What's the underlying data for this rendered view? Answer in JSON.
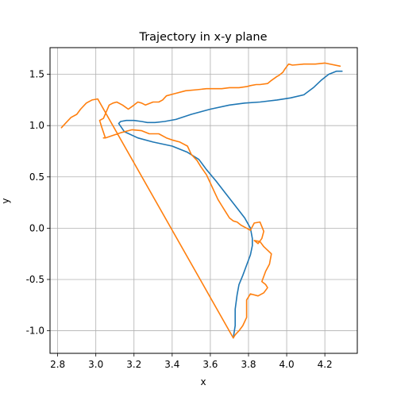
{
  "chart_data": {
    "type": "line",
    "title": "Trajectory in x-y plane",
    "xlabel": "x",
    "ylabel": "y",
    "xlim": [
      2.76,
      4.37
    ],
    "ylim": [
      -1.22,
      1.76
    ],
    "xticks": [
      2.8,
      3.0,
      3.2,
      3.4,
      3.6,
      3.8,
      4.0,
      4.2
    ],
    "yticks": [
      -1.0,
      -0.5,
      0.0,
      0.5,
      1.0,
      1.5
    ],
    "grid": true,
    "legend": "none",
    "series": [
      {
        "color": "#1f77b4",
        "x": [
          4.29,
          4.26,
          4.22,
          4.18,
          4.14,
          4.09,
          4.02,
          3.95,
          3.86,
          3.78,
          3.7,
          3.6,
          3.5,
          3.42,
          3.36,
          3.31,
          3.27,
          3.24,
          3.2,
          3.16,
          3.13,
          3.12,
          3.15,
          3.22,
          3.3,
          3.4,
          3.48,
          3.54,
          3.58,
          3.63,
          3.68,
          3.73,
          3.78,
          3.81,
          3.82,
          3.82,
          3.81,
          3.79,
          3.77,
          3.75,
          3.74,
          3.73,
          3.73,
          3.72
        ],
        "y": [
          1.53,
          1.53,
          1.5,
          1.44,
          1.37,
          1.3,
          1.27,
          1.25,
          1.23,
          1.22,
          1.2,
          1.16,
          1.11,
          1.06,
          1.04,
          1.03,
          1.03,
          1.04,
          1.05,
          1.05,
          1.04,
          1.02,
          0.94,
          0.88,
          0.84,
          0.8,
          0.74,
          0.67,
          0.57,
          0.46,
          0.34,
          0.22,
          0.1,
          0.0,
          -0.1,
          -0.17,
          -0.26,
          -0.36,
          -0.46,
          -0.55,
          -0.65,
          -0.79,
          -0.95,
          -1.07
        ]
      },
      {
        "color": "#ff7f0e",
        "x": [
          4.28,
          4.2,
          4.15,
          4.09,
          4.03,
          4.01,
          3.99,
          3.98,
          3.96,
          3.95,
          3.92,
          3.9,
          3.86,
          3.84,
          3.81,
          3.79,
          3.75,
          3.7,
          3.66,
          3.62,
          3.58,
          3.53,
          3.47,
          3.41,
          3.37,
          3.35,
          3.33,
          3.3,
          3.26,
          3.24,
          3.22,
          3.2,
          3.17,
          3.14,
          3.11,
          3.09,
          3.07,
          3.04,
          3.02,
          3.03,
          3.05,
          3.04,
          3.04,
          3.05,
          3.13,
          3.19,
          3.24,
          3.28,
          3.33,
          3.37,
          3.4,
          3.44,
          3.48,
          3.5,
          3.53,
          3.55,
          3.58,
          3.6,
          3.62,
          3.64,
          3.66,
          3.68,
          3.7,
          3.72,
          3.74,
          3.76,
          3.79,
          3.81,
          3.83,
          3.86,
          3.88,
          3.87,
          3.85,
          3.83,
          3.86,
          3.88,
          3.92,
          3.91,
          3.89,
          3.88,
          3.87,
          3.89,
          3.9,
          3.88,
          3.85,
          3.81,
          3.79,
          3.79,
          3.79,
          3.77,
          3.75,
          3.73,
          3.72,
          3.01,
          2.98,
          2.95,
          2.92,
          2.9,
          2.87,
          2.84,
          2.82
        ],
        "y": [
          1.58,
          1.61,
          1.6,
          1.6,
          1.59,
          1.6,
          1.55,
          1.52,
          1.49,
          1.48,
          1.44,
          1.41,
          1.4,
          1.4,
          1.39,
          1.38,
          1.37,
          1.37,
          1.36,
          1.36,
          1.36,
          1.35,
          1.34,
          1.31,
          1.29,
          1.25,
          1.23,
          1.23,
          1.2,
          1.22,
          1.23,
          1.2,
          1.16,
          1.2,
          1.23,
          1.22,
          1.2,
          1.07,
          1.05,
          0.99,
          0.88,
          0.88,
          0.88,
          0.88,
          0.93,
          0.96,
          0.95,
          0.92,
          0.92,
          0.88,
          0.86,
          0.84,
          0.8,
          0.72,
          0.66,
          0.6,
          0.52,
          0.44,
          0.36,
          0.28,
          0.22,
          0.16,
          0.1,
          0.07,
          0.06,
          0.03,
          0.0,
          -0.02,
          0.05,
          0.06,
          -0.03,
          -0.1,
          -0.15,
          -0.12,
          -0.13,
          -0.18,
          -0.25,
          -0.35,
          -0.42,
          -0.47,
          -0.52,
          -0.55,
          -0.58,
          -0.63,
          -0.66,
          -0.64,
          -0.7,
          -0.8,
          -0.87,
          -0.95,
          -1.0,
          -1.04,
          -1.07,
          1.26,
          1.25,
          1.22,
          1.16,
          1.11,
          1.08,
          1.02,
          0.98
        ]
      }
    ]
  }
}
